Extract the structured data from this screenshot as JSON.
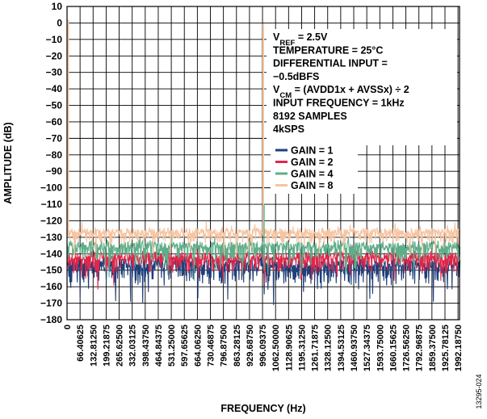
{
  "figure_id": "13295-024",
  "chart_data": {
    "type": "line",
    "title": "",
    "xlabel": "FREQUENCY (Hz)",
    "ylabel": "AMPLITUDE (dB)",
    "xlim": [
      0,
      2000
    ],
    "ylim": [
      -180,
      10
    ],
    "grid": true,
    "x_ticks": [
      "0",
      "66.40625",
      "132.81250",
      "199.21875",
      "265.62500",
      "332.03125",
      "398.43750",
      "464.84375",
      "531.25000",
      "597.65625",
      "664.06250",
      "730.46875",
      "796.87500",
      "863.28125",
      "929.68750",
      "996.09375",
      "1062.50000",
      "1128.90625",
      "1195.31250",
      "1261.71875",
      "1328.12500",
      "1394.53125",
      "1460.93750",
      "1527.34375",
      "1593.75000",
      "1660.15625",
      "1726.56250",
      "1792.96875",
      "1859.37500",
      "1925.78125",
      "1992.18750"
    ],
    "y_ticks": [
      "10",
      "0",
      "−10",
      "−20",
      "−30",
      "−40",
      "−50",
      "−60",
      "−70",
      "−80",
      "−90",
      "−100",
      "−110",
      "−120",
      "−130",
      "−140",
      "−150",
      "−160",
      "−170",
      "−180"
    ],
    "annotations": [
      {
        "main": "V",
        "sub": "REF",
        "rest": " = 2.5V"
      },
      {
        "main": "TEMPERATURE = 25°C"
      },
      {
        "main": "DIFFERENTIAL INPUT ="
      },
      {
        "main": "   −0.5dBFS"
      },
      {
        "main": "V",
        "sub": "CM",
        "rest": " = (AVDD1x + AVSSx) ÷ 2"
      },
      {
        "main": "INPUT FREQUENCY = 1kHz"
      },
      {
        "main": "8192 SAMPLES"
      },
      {
        "main": "4kSPS"
      }
    ],
    "legend_position": "right-middle",
    "series": [
      {
        "name": "GAIN = 1",
        "color": "#1f3f7a",
        "floor": -150,
        "spread": 12,
        "tone_peak": -0.5
      },
      {
        "name": "GAIN = 2",
        "color": "#e2264a",
        "floor": -145,
        "spread": 10,
        "tone_peak": -0.5
      },
      {
        "name": "GAIN = 4",
        "color": "#5fae8a",
        "floor": -138,
        "spread": 9,
        "tone_peak": -0.5
      },
      {
        "name": "GAIN = 8",
        "color": "#f6c4a0",
        "floor": -129,
        "spread": 7,
        "tone_peak": -0.5
      }
    ],
    "tone_frequency": 1000,
    "dc_bin_amplitude": 2
  }
}
